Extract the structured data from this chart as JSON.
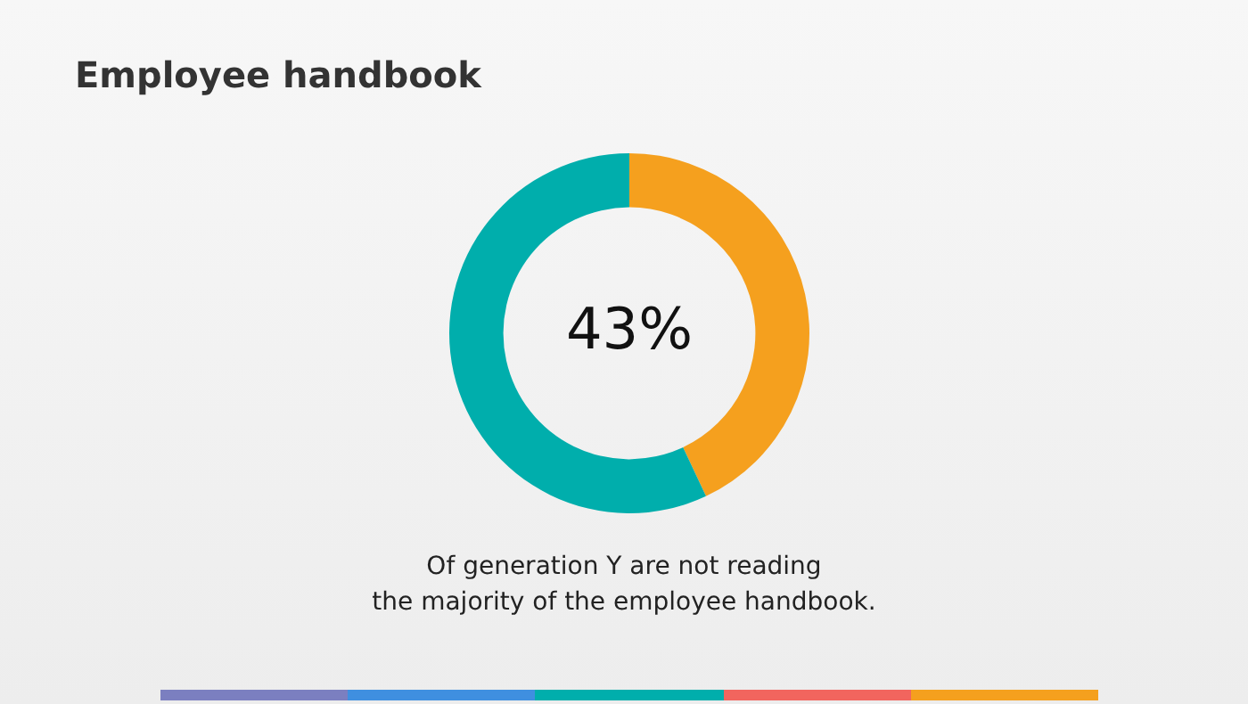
{
  "chart_data": {
    "type": "donut",
    "title": "Employee handbook",
    "categories": [
      null,
      null
    ],
    "values": [
      43,
      57
    ],
    "colors": [
      "#f5a01e",
      "#00aeac"
    ],
    "value_labels": [
      "43%",
      null
    ],
    "annotations": [
      "Of generation Y are not reading\nthe majority of the employee handbook."
    ],
    "legend": false
  }
}
